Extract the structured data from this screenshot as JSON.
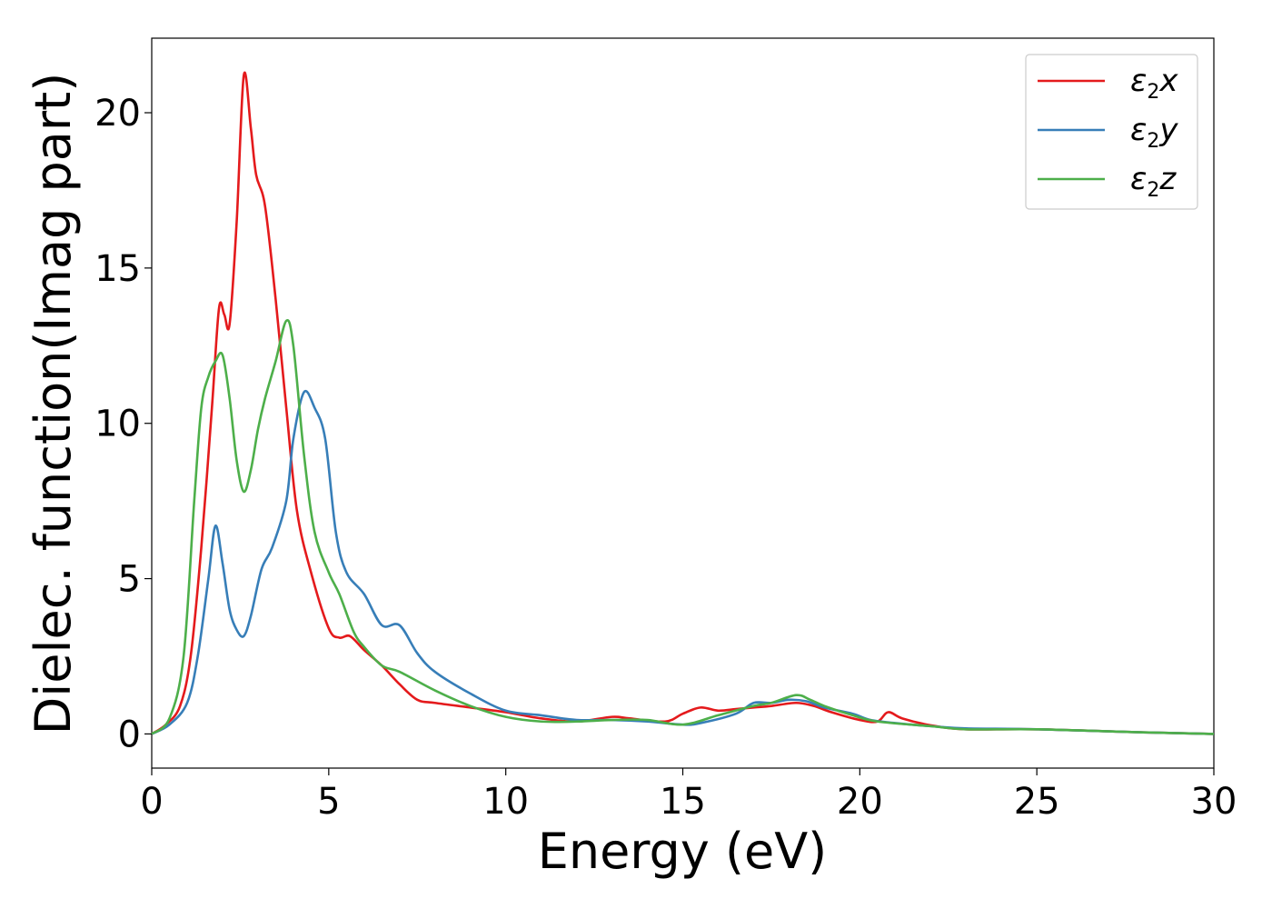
{
  "chart_data": {
    "type": "line",
    "title": "",
    "xlabel": "Energy (eV)",
    "ylabel": "Dielec. function(Imag part)",
    "xlim": [
      0,
      30
    ],
    "ylim": [
      -1.1,
      22.4
    ],
    "xticks": [
      0,
      5,
      10,
      15,
      20,
      25,
      30
    ],
    "yticks": [
      0,
      5,
      10,
      15,
      20
    ],
    "grid": false,
    "legend_position": "top-right",
    "series": [
      {
        "name": "ε2x",
        "legend": {
          "base": "ε",
          "sub": "2",
          "var": "x"
        },
        "color": "#e41a1c",
        "x": [
          0,
          0.4,
          0.8,
          1.1,
          1.4,
          1.7,
          1.9,
          2.05,
          2.2,
          2.4,
          2.6,
          2.8,
          2.95,
          3.2,
          3.5,
          3.8,
          4.1,
          4.5,
          5.0,
          5.3,
          5.6,
          6.0,
          6.5,
          7.0,
          7.5,
          8.0,
          9.0,
          10.0,
          11.0,
          12.0,
          13.0,
          13.5,
          14.5,
          15.0,
          15.5,
          16.0,
          16.5,
          17.0,
          17.5,
          18.2,
          18.7,
          19.2,
          20.0,
          20.5,
          20.8,
          21.2,
          22.0,
          23.0,
          25.0,
          28.0,
          30.0
        ],
        "y": [
          0,
          0.3,
          0.9,
          2.5,
          6.0,
          10.5,
          13.7,
          13.5,
          13.2,
          16.5,
          21.2,
          19.5,
          18.0,
          17.0,
          14.0,
          10.5,
          7.2,
          5.2,
          3.4,
          3.1,
          3.15,
          2.7,
          2.2,
          1.6,
          1.1,
          1.0,
          0.85,
          0.7,
          0.5,
          0.4,
          0.55,
          0.5,
          0.4,
          0.65,
          0.85,
          0.75,
          0.8,
          0.85,
          0.9,
          1.0,
          0.9,
          0.7,
          0.45,
          0.4,
          0.7,
          0.5,
          0.28,
          0.15,
          0.15,
          0.05,
          0.0
        ]
      },
      {
        "name": "ε2y",
        "legend": {
          "base": "ε",
          "sub": "2",
          "var": "y"
        },
        "color": "#377eb8",
        "x": [
          0,
          0.5,
          1.0,
          1.3,
          1.6,
          1.8,
          2.0,
          2.2,
          2.4,
          2.6,
          2.8,
          3.1,
          3.4,
          3.8,
          4.0,
          4.3,
          4.6,
          4.9,
          5.2,
          5.5,
          6.0,
          6.5,
          7.0,
          7.5,
          8.0,
          9.0,
          10.0,
          11.0,
          12.0,
          13.0,
          14.0,
          15.0,
          15.5,
          16.5,
          17.0,
          17.5,
          18.0,
          18.5,
          19.0,
          19.8,
          20.3,
          21.0,
          22.0,
          23.0,
          25.0,
          28.0,
          30.0
        ],
        "y": [
          0,
          0.3,
          1.0,
          2.5,
          5.0,
          6.7,
          5.5,
          4.0,
          3.35,
          3.15,
          3.8,
          5.3,
          6.0,
          7.5,
          9.5,
          11.0,
          10.5,
          9.5,
          6.5,
          5.2,
          4.5,
          3.5,
          3.5,
          2.6,
          2.0,
          1.3,
          0.75,
          0.6,
          0.45,
          0.45,
          0.4,
          0.3,
          0.35,
          0.65,
          1.0,
          1.0,
          1.1,
          1.05,
          0.85,
          0.65,
          0.45,
          0.35,
          0.25,
          0.18,
          0.15,
          0.05,
          0.0
        ]
      },
      {
        "name": "ε2z",
        "legend": {
          "base": "ε",
          "sub": "2",
          "var": "z"
        },
        "color": "#4daf4a",
        "x": [
          0,
          0.5,
          0.9,
          1.2,
          1.4,
          1.6,
          1.8,
          2.0,
          2.2,
          2.4,
          2.6,
          2.8,
          3.0,
          3.2,
          3.5,
          3.8,
          4.0,
          4.3,
          4.6,
          5.0,
          5.3,
          5.7,
          6.0,
          6.5,
          7.0,
          8.0,
          9.0,
          10.0,
          11.0,
          12.0,
          13.0,
          14.0,
          15.0,
          16.0,
          17.0,
          17.5,
          18.2,
          18.6,
          19.0,
          19.8,
          20.5,
          22.0,
          23.0,
          25.0,
          28.0,
          30.0
        ],
        "y": [
          0,
          0.5,
          2.5,
          7.5,
          10.5,
          11.5,
          12.0,
          12.2,
          10.8,
          8.8,
          7.8,
          8.5,
          9.8,
          10.8,
          12.0,
          13.3,
          12.5,
          9.0,
          6.5,
          5.2,
          4.5,
          3.3,
          2.8,
          2.2,
          2.0,
          1.4,
          0.9,
          0.55,
          0.4,
          0.4,
          0.45,
          0.45,
          0.3,
          0.6,
          0.9,
          1.0,
          1.25,
          1.1,
          0.9,
          0.6,
          0.4,
          0.25,
          0.15,
          0.15,
          0.05,
          0.0
        ]
      }
    ]
  }
}
